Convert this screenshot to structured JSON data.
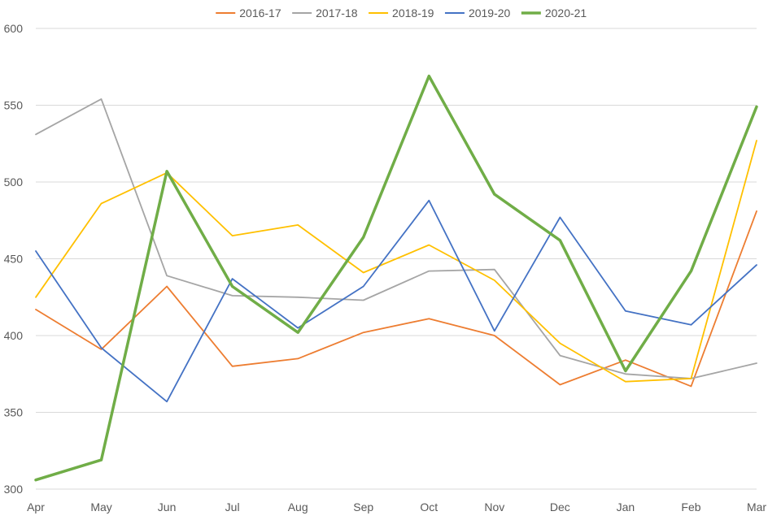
{
  "chart_data": {
    "type": "line",
    "title": "",
    "xlabel": "",
    "ylabel": "",
    "categories": [
      "Apr",
      "May",
      "Jun",
      "Jul",
      "Aug",
      "Sep",
      "Oct",
      "Nov",
      "Dec",
      "Jan",
      "Feb",
      "Mar"
    ],
    "ylim": [
      300,
      600
    ],
    "yticks": [
      300,
      350,
      400,
      450,
      500,
      550,
      600
    ],
    "grid": true,
    "legend": "top-center",
    "series": [
      {
        "name": "2016-17",
        "color": "#ed7d31",
        "emphasis": false,
        "values": [
          417,
          391,
          432,
          380,
          385,
          402,
          411,
          400,
          368,
          384,
          367,
          481
        ]
      },
      {
        "name": "2017-18",
        "color": "#a5a5a5",
        "emphasis": false,
        "values": [
          531,
          554,
          439,
          426,
          425,
          423,
          442,
          443,
          387,
          375,
          372,
          382
        ]
      },
      {
        "name": "2018-19",
        "color": "#ffc000",
        "emphasis": false,
        "values": [
          425,
          486,
          506,
          465,
          472,
          441,
          459,
          436,
          395,
          370,
          372,
          527
        ]
      },
      {
        "name": "2019-20",
        "color": "#4472c4",
        "emphasis": false,
        "values": [
          455,
          392,
          357,
          437,
          405,
          432,
          488,
          403,
          477,
          416,
          407,
          446
        ]
      },
      {
        "name": "2020-21",
        "color": "#70ad47",
        "emphasis": true,
        "values": [
          306,
          319,
          507,
          432,
          402,
          464,
          569,
          492,
          462,
          377,
          442,
          549
        ]
      }
    ]
  }
}
